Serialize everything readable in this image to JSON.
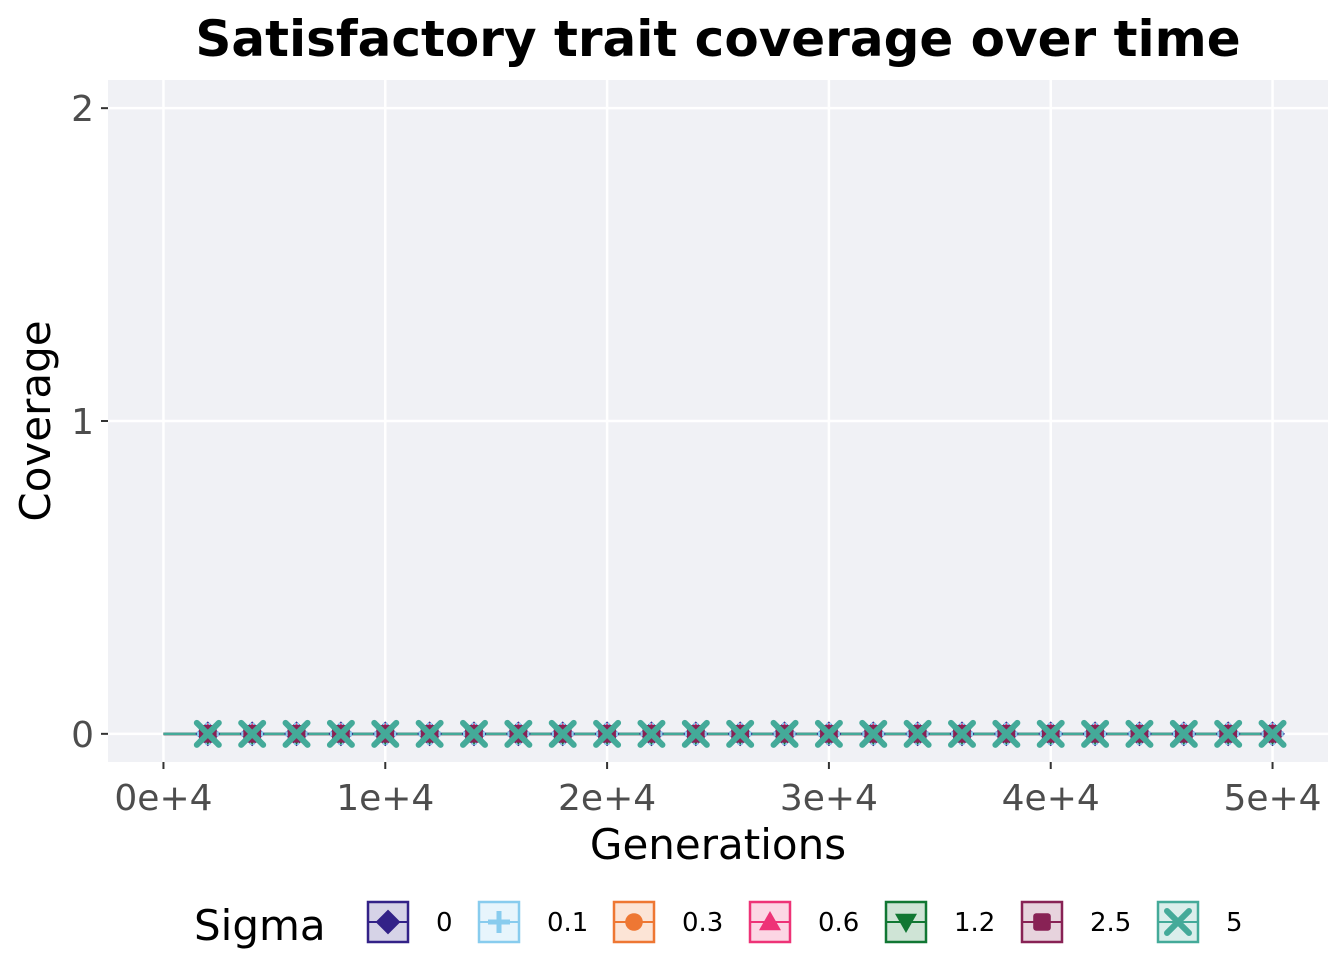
{
  "chart_data": {
    "type": "line",
    "title": "Satisfactory trait coverage over time",
    "xlabel": "Generations",
    "ylabel": "Coverage",
    "xlim": [
      -2500,
      52500
    ],
    "ylim": [
      -0.09,
      2.09
    ],
    "xticks": [
      0,
      10000,
      20000,
      30000,
      40000,
      50000
    ],
    "xtick_labels": [
      "0e+4",
      "1e+4",
      "2e+4",
      "3e+4",
      "4e+4",
      "5e+4"
    ],
    "yticks": [
      0,
      1,
      2
    ],
    "ytick_labels": [
      "0",
      "1",
      "2"
    ],
    "grid": true,
    "legend": {
      "title": "Sigma",
      "position": "bottom"
    },
    "x": [
      0,
      2000,
      4000,
      6000,
      8000,
      10000,
      12000,
      14000,
      16000,
      18000,
      20000,
      22000,
      24000,
      26000,
      28000,
      30000,
      32000,
      34000,
      36000,
      38000,
      40000,
      42000,
      44000,
      46000,
      48000,
      50000
    ],
    "marker_x": [
      2000,
      4000,
      6000,
      8000,
      10000,
      12000,
      14000,
      16000,
      18000,
      20000,
      22000,
      24000,
      26000,
      28000,
      30000,
      32000,
      34000,
      36000,
      38000,
      40000,
      42000,
      44000,
      46000,
      48000,
      50000
    ],
    "series": [
      {
        "name": "0",
        "color": "#332288",
        "marker": "diamond",
        "values": [
          0,
          0,
          0,
          0,
          0,
          0,
          0,
          0,
          0,
          0,
          0,
          0,
          0,
          0,
          0,
          0,
          0,
          0,
          0,
          0,
          0,
          0,
          0,
          0,
          0,
          0
        ]
      },
      {
        "name": "0.1",
        "color": "#88CCEE",
        "marker": "plus",
        "values": [
          0,
          0,
          0,
          0,
          0,
          0,
          0,
          0,
          0,
          0,
          0,
          0,
          0,
          0,
          0,
          0,
          0,
          0,
          0,
          0,
          0,
          0,
          0,
          0,
          0,
          0
        ]
      },
      {
        "name": "0.3",
        "color": "#EE7733",
        "marker": "circle",
        "values": [
          0,
          0,
          0,
          0,
          0,
          0,
          0,
          0,
          0,
          0,
          0,
          0,
          0,
          0,
          0,
          0,
          0,
          0,
          0,
          0,
          0,
          0,
          0,
          0,
          0,
          0
        ]
      },
      {
        "name": "0.6",
        "color": "#EE3377",
        "marker": "triangle-up",
        "values": [
          0,
          0,
          0,
          0,
          0,
          0,
          0,
          0,
          0,
          0,
          0,
          0,
          0,
          0,
          0,
          0,
          0,
          0,
          0,
          0,
          0,
          0,
          0,
          0,
          0,
          0
        ]
      },
      {
        "name": "1.2",
        "color": "#117733",
        "marker": "triangle-down",
        "values": [
          0,
          0,
          0,
          0,
          0,
          0,
          0,
          0,
          0,
          0,
          0,
          0,
          0,
          0,
          0,
          0,
          0,
          0,
          0,
          0,
          0,
          0,
          0,
          0,
          0,
          0
        ]
      },
      {
        "name": "2.5",
        "color": "#882255",
        "marker": "square",
        "values": [
          0,
          0,
          0,
          0,
          0,
          0,
          0,
          0,
          0,
          0,
          0,
          0,
          0,
          0,
          0,
          0,
          0,
          0,
          0,
          0,
          0,
          0,
          0,
          0,
          0,
          0
        ]
      },
      {
        "name": "5",
        "color": "#44AA99",
        "marker": "x",
        "values": [
          0,
          0,
          0,
          0,
          0,
          0,
          0,
          0,
          0,
          0,
          0,
          0,
          0,
          0,
          0,
          0,
          0,
          0,
          0,
          0,
          0,
          0,
          0,
          0,
          0,
          0
        ]
      }
    ],
    "colors": {
      "panel": "#f0f1f5",
      "grid": "#ffffff",
      "tick_text": "#4d4d4d"
    }
  }
}
